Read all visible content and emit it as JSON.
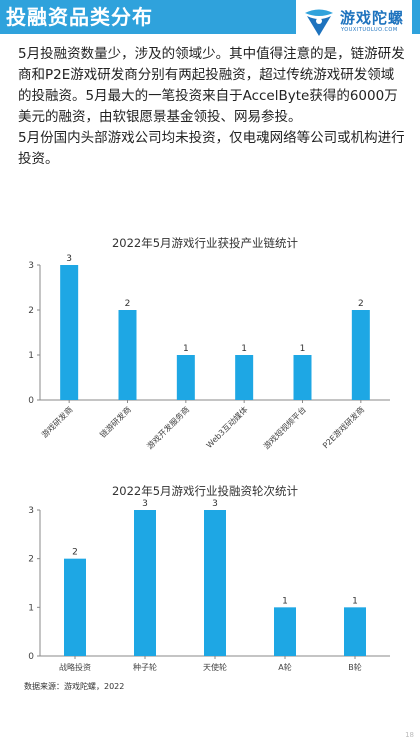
{
  "header": {
    "title": "投融资品类分布"
  },
  "logo": {
    "name": "游戏陀螺",
    "sub": "YOUXITUOLUO.COM"
  },
  "paragraph": [
    "5月投融资数量少，涉及的领域少。其中值得注意的是，链游研发商和P2E游戏研发商分别有两起投融资，超过传统游戏研发领域的投融资。5月最大的一笔投资来自于AccelByte获得的6000万美元的融资，由软银愿景基金领投、网易参投。",
    "5月份国内头部游戏公司均未投资，仅电魂网络等公司或机构进行投资。"
  ],
  "chart_data": [
    {
      "type": "bar",
      "title": "2022年5月游戏行业获投产业链统计",
      "categories": [
        "游戏研发商",
        "链游研发商",
        "游戏开发服务商",
        "Web3互动媒体",
        "游戏短视频平台",
        "P2E游戏研发商"
      ],
      "values": [
        3,
        2,
        1,
        1,
        1,
        2
      ],
      "ylim": [
        0,
        3
      ],
      "yticks": [
        0,
        1,
        2,
        3
      ],
      "color": "#1ea7e4",
      "grid": false
    },
    {
      "type": "bar",
      "title": "2022年5月游戏行业投融资轮次统计",
      "categories": [
        "战略投资",
        "种子轮",
        "天使轮",
        "A轮",
        "B轮"
      ],
      "values": [
        2,
        3,
        3,
        1,
        1
      ],
      "ylim": [
        0,
        3
      ],
      "yticks": [
        0,
        1,
        2,
        3
      ],
      "color": "#1ea7e4",
      "grid": false
    }
  ],
  "source": "数据来源：游戏陀螺，2022",
  "page_number": "18"
}
